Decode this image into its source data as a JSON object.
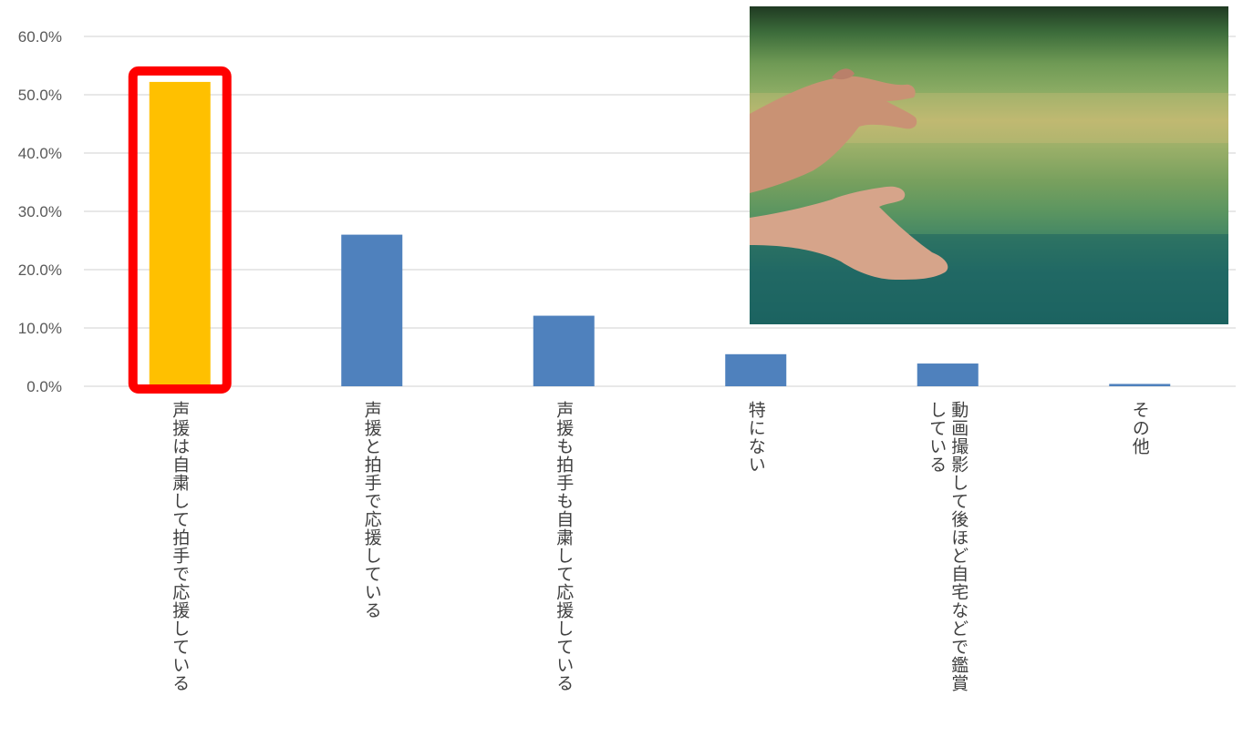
{
  "chart_data": {
    "type": "bar",
    "categories": [
      "声援は自粛して拍手で応援している",
      "声援と拍手で応援している",
      "声援も拍手も自粛して応援している",
      "特にない",
      "動画撮影して後ほど自宅などで鑑賞している",
      "その他"
    ],
    "category_lines": [
      [
        "声援は自粛して拍手で応援している"
      ],
      [
        "声援と拍手で応援している"
      ],
      [
        "声援も拍手も自粛して応援している"
      ],
      [
        "特にない"
      ],
      [
        "動画撮影して後ほど自宅などで鑑賞",
        "している"
      ],
      [
        "その他"
      ]
    ],
    "values": [
      52.2,
      26.0,
      12.1,
      5.5,
      3.9,
      0.4
    ],
    "y_ticks": [
      "0.0%",
      "10.0%",
      "20.0%",
      "30.0%",
      "40.0%",
      "50.0%",
      "60.0%"
    ],
    "ylim": [
      0,
      60
    ],
    "grid": true,
    "highlight_index": 0,
    "colors": {
      "bar": "#4f81bd",
      "highlight_bar": "#ffc000",
      "highlight_frame": "#ff0000",
      "grid": "#d9d9d9"
    }
  },
  "photo": {
    "name": "clapping-hands-photo"
  }
}
